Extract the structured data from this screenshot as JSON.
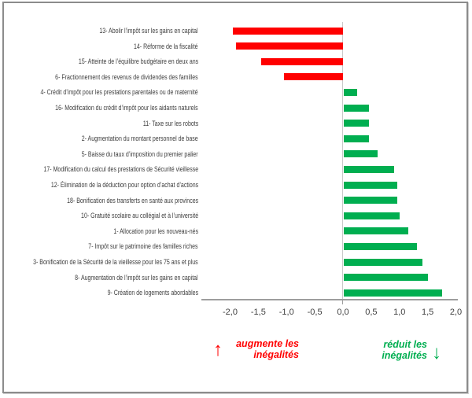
{
  "chart_data": {
    "type": "bar",
    "orientation": "horizontal",
    "title": "",
    "xlabel": "",
    "ylabel": "",
    "grid": false,
    "legend": false,
    "xlim": [
      -2.5,
      2.05
    ],
    "categories": [
      "13- Abolir l’impôt sur les gains en capital",
      "14- Réforme de la fiscalité",
      "15- Atteinte de l’équilibre budgétaire en deux ans",
      "6- Fractionnement des revenus de dividendes des familles",
      "4- Crédit d’impôt pour les prestations parentales ou de maternité",
      "16- Modification du crédit d’impôt pour les aidants naturels",
      "11- Taxe sur les robots",
      "2- Augmentation du montant personnel de base",
      "5- Baisse du taux d’imposition du premier palier",
      "17- Modification du calcul des prestations de Sécurité vieillesse",
      "12- Élimination de la déduction pour option d’achat d’actions",
      "18- Bonification des transferts en santé aux provinces",
      "10- Gratuité scolaire au collégial et à l’université",
      "1- Allocation pour les nouveau-nés",
      "7- Impôt sur le patrimoine des familles riches",
      "3- Bonification de la Sécurité de la vieillesse pour les 75 ans et plus",
      "8- Augmentation de l’impôt sur les gains en capital",
      "9- Création de logements abordables"
    ],
    "values": [
      -1.95,
      -1.9,
      -1.45,
      -1.05,
      0.25,
      0.45,
      0.45,
      0.45,
      0.6,
      0.9,
      0.95,
      0.95,
      1.0,
      1.15,
      1.3,
      1.4,
      1.5,
      1.75
    ],
    "xticks": [
      {
        "label": "-2,0",
        "value": -2.0
      },
      {
        "label": "-1,5",
        "value": -1.5
      },
      {
        "label": "-1,0",
        "value": -1.0
      },
      {
        "label": "-0,5",
        "value": -0.5
      },
      {
        "label": "0,0",
        "value": 0.0
      },
      {
        "label": "0,5",
        "value": 0.5
      },
      {
        "label": "1,0",
        "value": 1.0
      },
      {
        "label": "1,5",
        "value": 1.5
      },
      {
        "label": "2,0",
        "value": 2.0
      }
    ],
    "negative_color": "#ff0000",
    "positive_color": "#00ae50"
  },
  "annotations": {
    "increase": {
      "arrow": "↑",
      "line1": "augmente les",
      "line2": "inégalités",
      "color": "#ff0000"
    },
    "decrease": {
      "arrow": "↓",
      "line1": "réduit les",
      "line2": "inégalités",
      "color": "#00ae50"
    }
  }
}
